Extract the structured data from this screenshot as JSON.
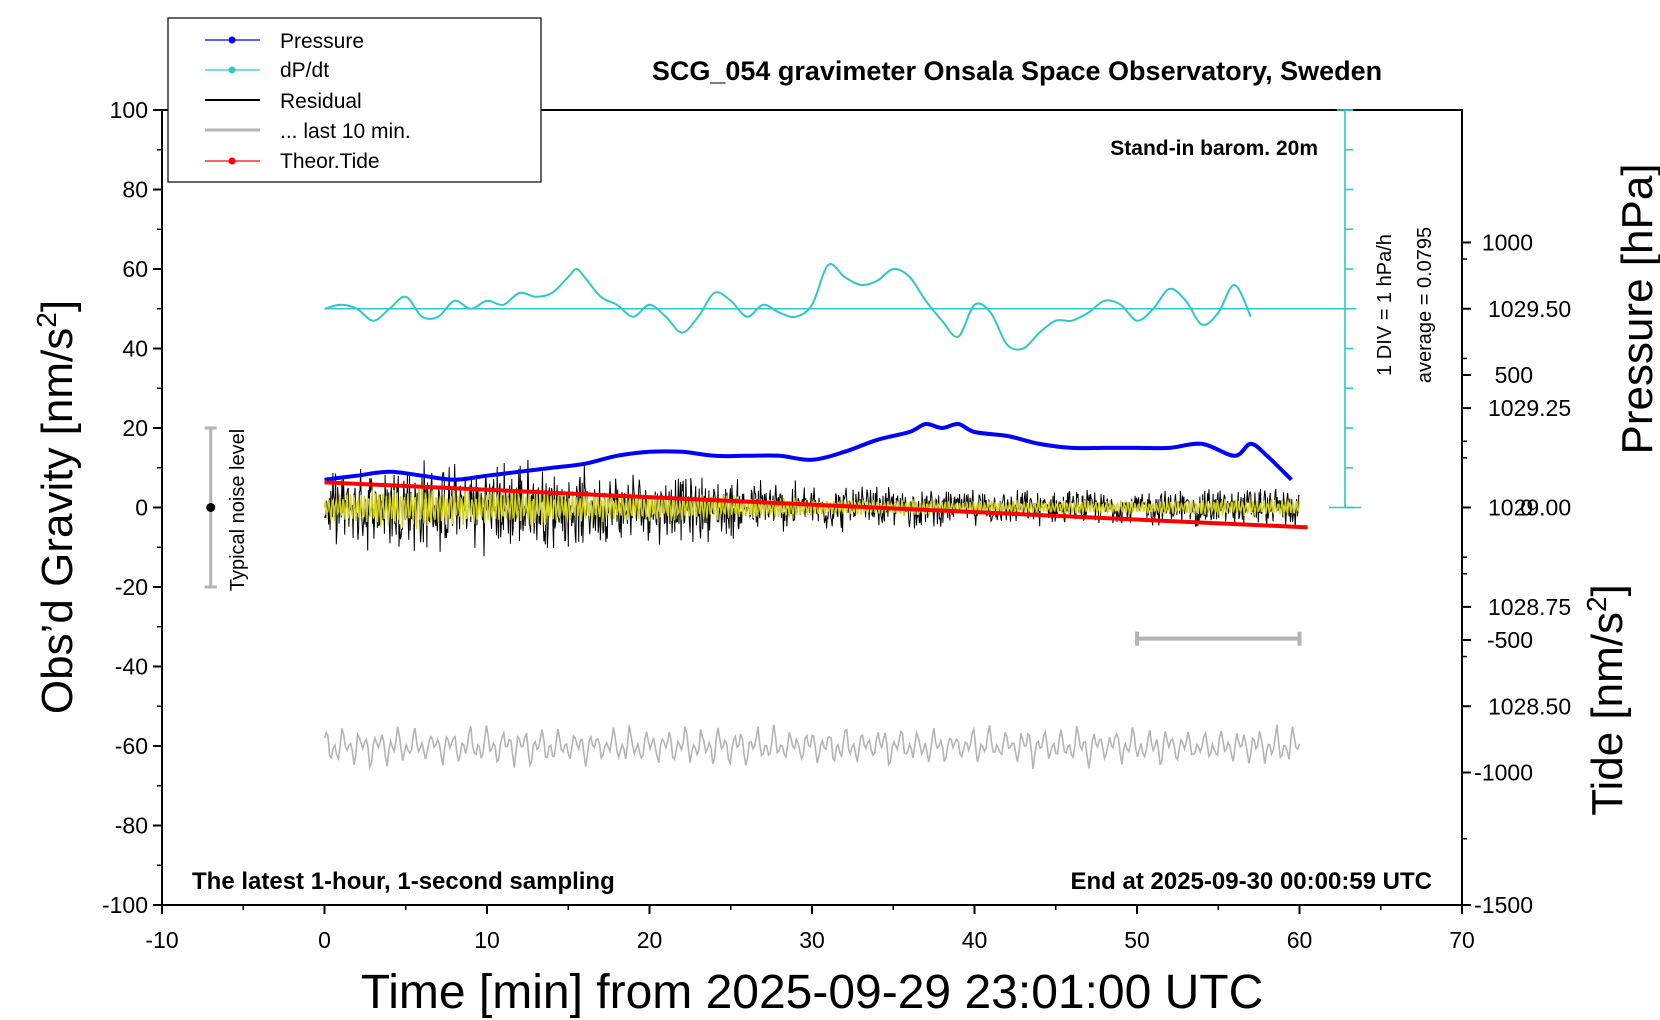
{
  "chart_data": {
    "type": "line",
    "title": "SCG_054 gravimeter Onsala Space Observatory, Sweden",
    "xlabel": "Time [min] from 2025-09-29 23:01:00 UTC",
    "ylabel_left": "Obs’d Gravity [nm/s",
    "ylabel_left_sup": "2",
    "ylabel_left_end": "]",
    "ylabel_right_top": "Pressure [hPa]",
    "ylabel_right_bottom": "Tide [nm/s",
    "ylabel_right_bottom_sup": "2",
    "ylabel_right_bottom_end": "]",
    "xlim": [
      -10,
      70
    ],
    "ylim": [
      -100,
      100
    ],
    "x_ticks": [
      "-10",
      "0",
      "10",
      "20",
      "30",
      "40",
      "50",
      "60",
      "70"
    ],
    "y_ticks": [
      "100",
      "80",
      "60",
      "40",
      "20",
      "0",
      "-20",
      "-40",
      "-60",
      "-80",
      "-100"
    ],
    "pressure_ticks": [
      "1029.50",
      "1029.25",
      "1029.00",
      "1028.75",
      "1028.50"
    ],
    "tide_ticks": [
      "1000",
      "500",
      "0",
      "-500",
      "-1000",
      "-1500"
    ],
    "pressure_lim_hpa": [
      1028.75,
      1029.75
    ],
    "tide_lim": [
      -1500,
      1500
    ],
    "annotations": {
      "barometer": "Stand-in barom. 20m",
      "div_label": "1 DIV = 1 hPa/h",
      "average_label": "average = 0.0795",
      "noise_label": "Typical noise level",
      "bottom_left": "The latest 1-hour, 1-second sampling",
      "bottom_right": "End at 2025-09-30 00:00:59 UTC"
    },
    "legend": [
      {
        "name": "Pressure",
        "color": "#0000ff",
        "marker": true
      },
      {
        "name": "dP/dt",
        "color": "#2ec8c8",
        "marker": true
      },
      {
        "name": "Residual",
        "color": "#000000",
        "marker": false
      },
      {
        "name": "... last 10 min.",
        "color": "#b4b4b4",
        "marker": false
      },
      {
        "name": "Theor.Tide",
        "color": "#ff0000",
        "marker": true
      }
    ],
    "legend_placement": "top-left",
    "grid": false,
    "colors": {
      "pressure": "#0000ff",
      "dpdt": "#2ec8c8",
      "residual": "#000000",
      "smoothed": "#d2d21e",
      "last10": "#b4b4b4",
      "tide": "#ff0000"
    },
    "series": [
      {
        "name": "Pressure",
        "axis": "pressure_hPa",
        "x": [
          0,
          2,
          4,
          6,
          8,
          10,
          12,
          14,
          16,
          18,
          20,
          22,
          24,
          26,
          28,
          30,
          32,
          34,
          36,
          37,
          38,
          39,
          40,
          42,
          44,
          46,
          48,
          50,
          52,
          54,
          56,
          57,
          58,
          59.5
        ],
        "values": [
          1029.07,
          1029.08,
          1029.09,
          1029.08,
          1029.07,
          1029.08,
          1029.09,
          1029.1,
          1029.11,
          1029.13,
          1029.14,
          1029.14,
          1029.13,
          1029.13,
          1029.13,
          1029.12,
          1029.14,
          1029.17,
          1029.19,
          1029.21,
          1029.2,
          1029.21,
          1029.19,
          1029.18,
          1029.16,
          1029.15,
          1029.15,
          1029.15,
          1029.15,
          1029.16,
          1029.13,
          1029.16,
          1029.13,
          1029.07
        ]
      },
      {
        "name": "dP/dt",
        "axis": "gravity_nms2",
        "x": [
          0,
          1,
          2,
          3,
          4,
          5,
          6,
          7,
          8,
          9,
          10,
          11,
          12,
          13,
          14,
          15,
          15.5,
          16,
          17,
          18,
          19,
          20,
          21,
          22,
          23,
          24,
          25,
          26,
          27,
          28,
          29,
          30,
          31,
          32,
          33,
          34,
          35,
          36,
          37,
          38,
          39,
          40,
          41,
          42,
          43,
          44,
          45,
          46,
          47,
          48,
          49,
          50,
          51,
          52,
          53,
          54,
          55,
          56,
          57
        ],
        "values": [
          50,
          51,
          50,
          47,
          50,
          53,
          48,
          48,
          52,
          50,
          52,
          51,
          54,
          53,
          54,
          58,
          60,
          58,
          53,
          51,
          48,
          51,
          48,
          44,
          48,
          54,
          52,
          48,
          51,
          49,
          48,
          51,
          61,
          58,
          56,
          57,
          60,
          58,
          52,
          47,
          43,
          51,
          49,
          41,
          40,
          44,
          47,
          47,
          49,
          52,
          51,
          47,
          50,
          55,
          52,
          46,
          49,
          56,
          48
        ]
      },
      {
        "name": "Residual",
        "axis": "gravity_nms2",
        "x_range": [
          0,
          60
        ],
        "envelope": [
          [
            0,
            9
          ],
          [
            3,
            12
          ],
          [
            5,
            16
          ],
          [
            8,
            12
          ],
          [
            12,
            14
          ],
          [
            15,
            11
          ],
          [
            20,
            10
          ],
          [
            25,
            9
          ],
          [
            30,
            7
          ],
          [
            35,
            6
          ],
          [
            40,
            5
          ],
          [
            45,
            5
          ],
          [
            50,
            5
          ],
          [
            55,
            6
          ],
          [
            60,
            6
          ]
        ]
      },
      {
        "name": "... last 10 min.",
        "axis": "gravity_nms2",
        "x_range": [
          0,
          60
        ],
        "center": -60,
        "amplitude": 4
      },
      {
        "name": "Theor.Tide",
        "axis": "tide_nms2",
        "x": [
          0,
          60.5
        ],
        "values": [
          95,
          -75
        ]
      }
    ],
    "noise_bar": {
      "x": -7,
      "low": -20,
      "high": 20
    },
    "last10_bar": {
      "x_start": 50,
      "x_end": 60,
      "y": -33
    }
  }
}
